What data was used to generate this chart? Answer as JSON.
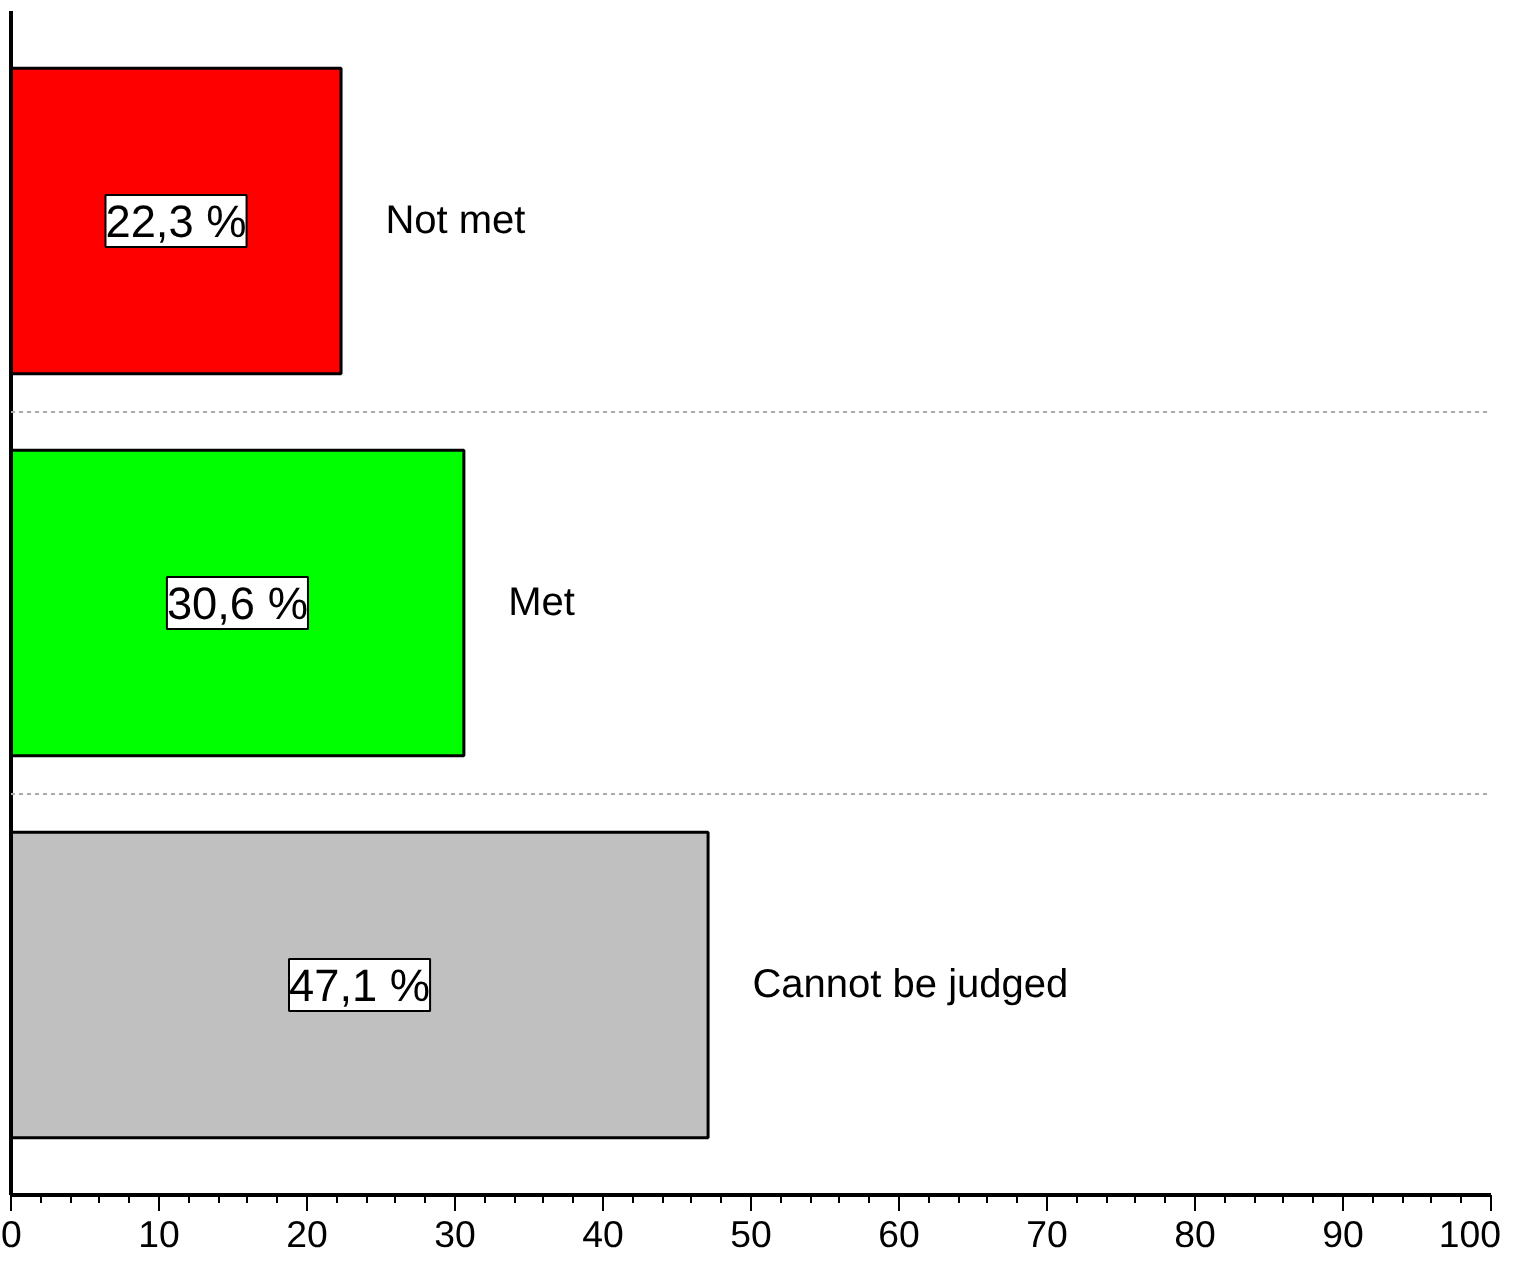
{
  "chart_data": {
    "type": "bar",
    "orientation": "horizontal",
    "categories": [
      "Not met",
      "Met",
      "Cannot be judged"
    ],
    "values": [
      22.3,
      30.6,
      47.1
    ],
    "colors": [
      "#ff0000",
      "#00ff00",
      "#c0c0c0"
    ],
    "value_labels": [
      "22,3 %",
      "30,6 %",
      "47,1 %"
    ],
    "xlim": [
      0,
      100
    ],
    "xticks": [
      0,
      10,
      20,
      30,
      40,
      50,
      60,
      70,
      80,
      90,
      100
    ],
    "tick_labels": "x",
    "grid": "y"
  }
}
